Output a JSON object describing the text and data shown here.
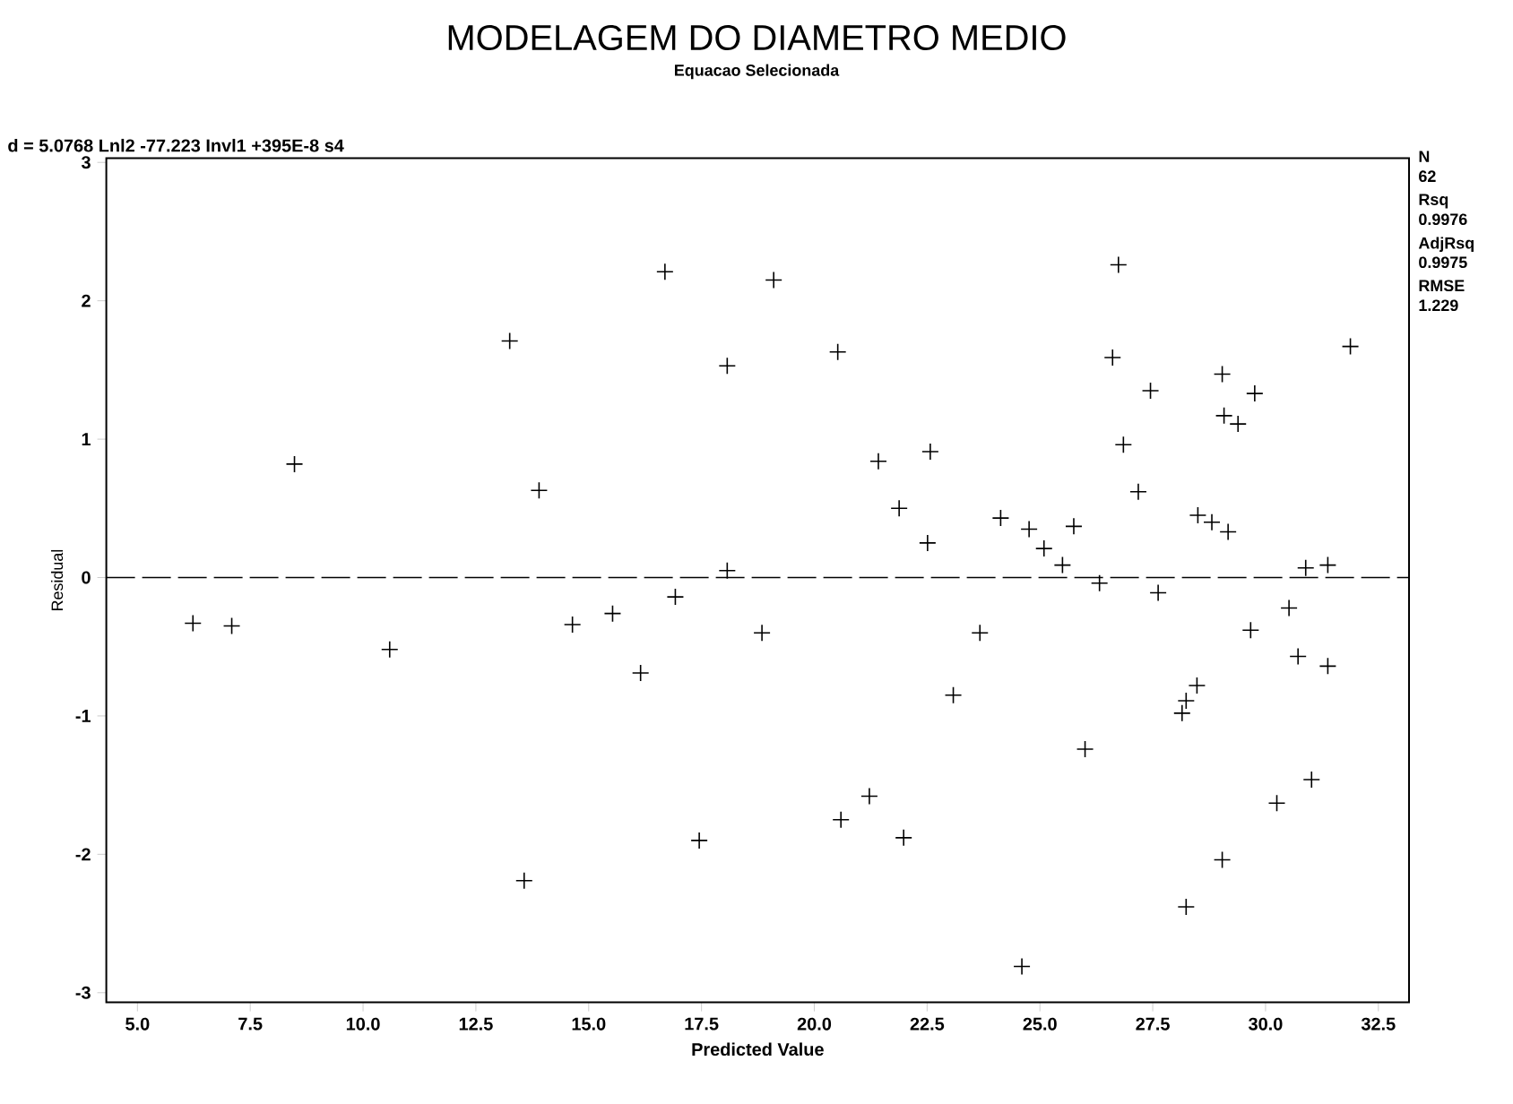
{
  "chart_data": {
    "type": "scatter",
    "title": "MODELAGEM DO DIAMETRO MEDIO",
    "subtitle": "Equacao Selecionada",
    "xlabel": "Predicted Value",
    "ylabel": "Residual",
    "annotations": [
      "d = 5.0768 Lnl2 -77.223 Invl1 +395E-8 s4",
      "N",
      "62",
      "Rsq",
      "0.9976",
      "AdjRsq",
      "0.9975",
      "RMSE",
      "1.229"
    ],
    "x": [
      8.48,
      13.25,
      13.9,
      16.69,
      18.07,
      18.07,
      19.1,
      20.52,
      21.42,
      22.57,
      21.88,
      22.51,
      24.13,
      24.76,
      25.09,
      25.75,
      25.5,
      26.32,
      26.74,
      26.61,
      26.85,
      27.18,
      27.45,
      29.04,
      29.76,
      29.08,
      29.39,
      28.5,
      28.81,
      29.17,
      30.89,
      31.38,
      31.88,
      6.23,
      7.09,
      10.59,
      13.57,
      14.64,
      15.53,
      16.15,
      16.92,
      17.45,
      18.84,
      20.59,
      21.22,
      21.98,
      23.08,
      23.67,
      24.6,
      26.0,
      27.62,
      28.15,
      28.24,
      28.48,
      28.24,
      29.04,
      29.67,
      30.25,
      30.52,
      30.72,
      31.02,
      31.38
    ],
    "values": [
      0.82,
      1.71,
      0.63,
      2.21,
      1.53,
      0.05,
      2.15,
      1.63,
      0.84,
      0.91,
      0.5,
      0.25,
      0.43,
      0.35,
      0.21,
      0.37,
      0.09,
      -0.04,
      2.26,
      1.59,
      0.96,
      0.62,
      1.35,
      1.47,
      1.33,
      1.17,
      1.11,
      0.45,
      0.4,
      0.33,
      0.07,
      0.09,
      1.67,
      -0.33,
      -0.35,
      -0.52,
      -2.19,
      -0.34,
      -0.26,
      -0.69,
      -0.14,
      -1.9,
      -0.4,
      -1.75,
      -1.58,
      -1.88,
      -0.85,
      -0.4,
      -2.81,
      -1.24,
      -0.11,
      -0.98,
      -0.89,
      -0.78,
      -2.38,
      -2.04,
      -0.38,
      -1.63,
      -0.22,
      -0.57,
      -1.46,
      -0.64
    ],
    "color": "#000000",
    "marker": "cross",
    "xlim": [
      4.31,
      33.18
    ],
    "ylim": [
      -3.07,
      3.03
    ],
    "xticks": [
      {
        "value": 5,
        "label": "5.0"
      },
      {
        "value": 7.5,
        "label": "7.5"
      },
      {
        "value": 10,
        "label": "10.0"
      },
      {
        "value": 12.5,
        "label": "12.5"
      },
      {
        "value": 15,
        "label": "15.0"
      },
      {
        "value": 17.5,
        "label": "17.5"
      },
      {
        "value": 20,
        "label": "20.0"
      },
      {
        "value": 22.5,
        "label": "22.5"
      },
      {
        "value": 25,
        "label": "25.0"
      },
      {
        "value": 27.5,
        "label": "27.5"
      },
      {
        "value": 30,
        "label": "30.0"
      },
      {
        "value": 32.5,
        "label": "32.5"
      }
    ],
    "yticks": [
      -3,
      -2,
      -1,
      0,
      1,
      2,
      3
    ],
    "ref_lines": [
      {
        "axis": "y",
        "value": 0,
        "line_style": "dashed"
      }
    ],
    "grid": false
  }
}
